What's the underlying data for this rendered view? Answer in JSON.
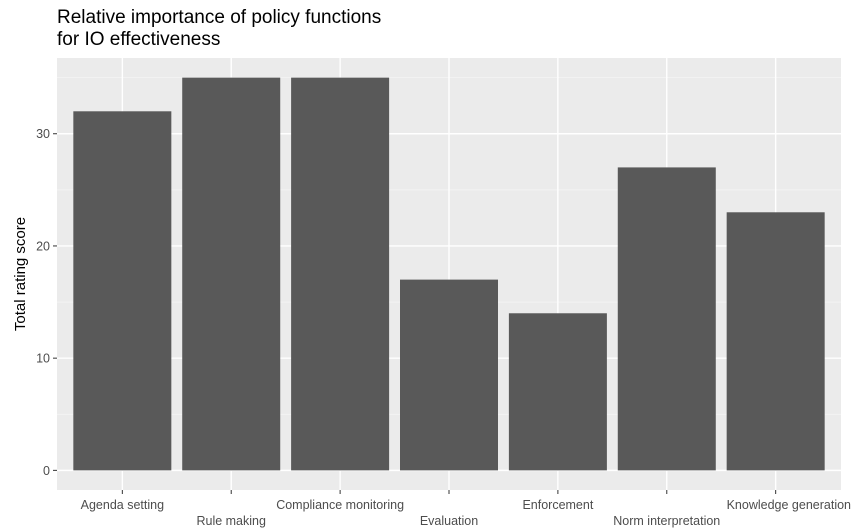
{
  "chart_data": {
    "type": "bar",
    "title_lines": [
      "Relative importance of policy functions",
      "for IO effectiveness"
    ],
    "categories": [
      "Agenda setting",
      "Rule making",
      "Compliance monitoring",
      "Evaluation",
      "Enforcement",
      "Norm interpretation",
      "Knowledge generation"
    ],
    "values": [
      32,
      35,
      35,
      17,
      14,
      27,
      23
    ],
    "ylabel": "Total rating score",
    "xlabel": "",
    "ylim": [
      -1.75,
      36.75
    ],
    "yticks": [
      0,
      10,
      20,
      30
    ],
    "grid": true,
    "legend": "none",
    "colors": {
      "bar": "#595959",
      "panel": "#ebebeb",
      "grid_major": "#ffffff",
      "grid_minor": "#f5f5f5",
      "tick": "#333333"
    }
  }
}
